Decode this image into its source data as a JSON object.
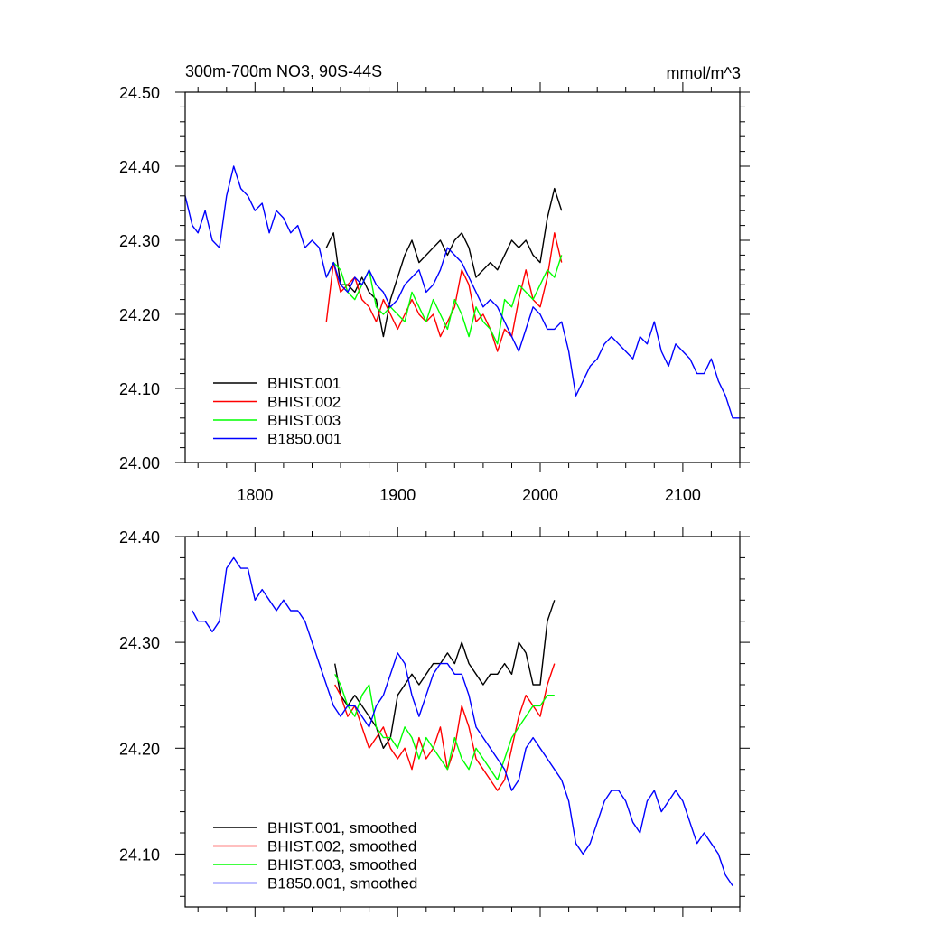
{
  "figure": {
    "title_left": "300m-700m NO3, 90S-44S",
    "title_right": "mmol/m^3"
  },
  "chart_data": [
    {
      "type": "line",
      "title": "300m-700m NO3, 90S-44S",
      "units": "mmol/m^3",
      "xlim": [
        1751,
        2140
      ],
      "ylim": [
        24.0,
        24.5
      ],
      "xticks": [
        1800,
        1900,
        2000,
        2100
      ],
      "xtick_labels": [
        "1800",
        "1900",
        "2000",
        "2100"
      ],
      "yticks": [
        24.0,
        24.1,
        24.2,
        24.3,
        24.4,
        24.5
      ],
      "ytick_labels": [
        "24.00",
        "24.10",
        "24.20",
        "24.30",
        "24.40",
        "24.50"
      ],
      "legend_position": "bottom-left",
      "series": [
        {
          "name": "BHIST.001",
          "color": "#000000",
          "x": [
            1850,
            1855,
            1860,
            1865,
            1870,
            1875,
            1880,
            1885,
            1890,
            1895,
            1900,
            1905,
            1910,
            1915,
            1920,
            1925,
            1930,
            1935,
            1940,
            1945,
            1950,
            1955,
            1960,
            1965,
            1970,
            1975,
            1980,
            1985,
            1990,
            1995,
            2000,
            2005,
            2010,
            2015
          ],
          "y": [
            24.29,
            24.31,
            24.24,
            24.24,
            24.23,
            24.25,
            24.23,
            24.22,
            24.17,
            24.22,
            24.25,
            24.28,
            24.3,
            24.27,
            24.28,
            24.29,
            24.3,
            24.28,
            24.3,
            24.31,
            24.29,
            24.25,
            24.26,
            24.27,
            24.26,
            24.28,
            24.3,
            24.29,
            24.3,
            24.28,
            24.27,
            24.33,
            24.37,
            24.34
          ]
        },
        {
          "name": "BHIST.002",
          "color": "#ff0000",
          "x": [
            1850,
            1855,
            1860,
            1865,
            1870,
            1875,
            1880,
            1885,
            1890,
            1895,
            1900,
            1905,
            1910,
            1915,
            1920,
            1925,
            1930,
            1935,
            1940,
            1945,
            1950,
            1955,
            1960,
            1965,
            1970,
            1975,
            1980,
            1985,
            1990,
            1995,
            2000,
            2005,
            2010,
            2015
          ],
          "y": [
            24.19,
            24.27,
            24.23,
            24.24,
            24.25,
            24.22,
            24.21,
            24.19,
            24.22,
            24.2,
            24.18,
            24.2,
            24.22,
            24.2,
            24.19,
            24.2,
            24.17,
            24.19,
            24.21,
            24.26,
            24.24,
            24.19,
            24.2,
            24.18,
            24.15,
            24.18,
            24.17,
            24.22,
            24.26,
            24.22,
            24.21,
            24.25,
            24.31,
            24.27
          ]
        },
        {
          "name": "BHIST.003",
          "color": "#00ff00",
          "x": [
            1850,
            1855,
            1860,
            1865,
            1870,
            1875,
            1880,
            1885,
            1890,
            1895,
            1900,
            1905,
            1910,
            1915,
            1920,
            1925,
            1930,
            1935,
            1940,
            1945,
            1950,
            1955,
            1960,
            1965,
            1970,
            1975,
            1980,
            1985,
            1990,
            1995,
            2000,
            2005,
            2010,
            2015
          ],
          "y": [
            24.25,
            24.27,
            24.26,
            24.23,
            24.22,
            24.24,
            24.26,
            24.21,
            24.2,
            24.21,
            24.2,
            24.19,
            24.23,
            24.21,
            24.19,
            24.22,
            24.2,
            24.18,
            24.22,
            24.2,
            24.17,
            24.21,
            24.19,
            24.18,
            24.16,
            24.22,
            24.21,
            24.24,
            24.23,
            24.22,
            24.24,
            24.26,
            24.25,
            24.28
          ]
        },
        {
          "name": "B1850.001",
          "color": "#0000ff",
          "x": [
            1751,
            1756,
            1760,
            1765,
            1770,
            1775,
            1780,
            1785,
            1790,
            1795,
            1800,
            1805,
            1810,
            1815,
            1820,
            1825,
            1830,
            1835,
            1840,
            1845,
            1850,
            1855,
            1860,
            1865,
            1870,
            1875,
            1880,
            1885,
            1890,
            1895,
            1900,
            1905,
            1910,
            1915,
            1920,
            1925,
            1930,
            1935,
            1940,
            1945,
            1950,
            1955,
            1960,
            1965,
            1970,
            1975,
            1980,
            1985,
            1990,
            1995,
            2000,
            2005,
            2010,
            2015,
            2020,
            2025,
            2030,
            2035,
            2040,
            2045,
            2050,
            2055,
            2060,
            2065,
            2070,
            2075,
            2080,
            2085,
            2090,
            2095,
            2100,
            2105,
            2110,
            2115,
            2120,
            2125,
            2130,
            2135,
            2140
          ],
          "y": [
            24.36,
            24.32,
            24.31,
            24.34,
            24.3,
            24.29,
            24.36,
            24.4,
            24.37,
            24.36,
            24.34,
            24.35,
            24.31,
            24.34,
            24.33,
            24.31,
            24.32,
            24.29,
            24.3,
            24.29,
            24.25,
            24.27,
            24.24,
            24.23,
            24.25,
            24.24,
            24.26,
            24.24,
            24.23,
            24.21,
            24.22,
            24.24,
            24.25,
            24.26,
            24.23,
            24.24,
            24.26,
            24.29,
            24.28,
            24.27,
            24.25,
            24.23,
            24.21,
            24.22,
            24.21,
            24.19,
            24.17,
            24.15,
            24.18,
            24.21,
            24.2,
            24.18,
            24.18,
            24.19,
            24.15,
            24.09,
            24.11,
            24.13,
            24.14,
            24.16,
            24.17,
            24.16,
            24.15,
            24.14,
            24.17,
            24.16,
            24.19,
            24.15,
            24.13,
            24.16,
            24.15,
            24.14,
            24.12,
            24.12,
            24.14,
            24.11,
            24.09,
            24.06,
            24.06
          ]
        }
      ]
    },
    {
      "type": "line",
      "xlim": [
        1751,
        2140
      ],
      "ylim": [
        24.05,
        24.4
      ],
      "xticks": [
        1800,
        1900,
        2000,
        2100
      ],
      "yticks": [
        24.1,
        24.2,
        24.3,
        24.4
      ],
      "ytick_labels": [
        "24.10",
        "24.20",
        "24.30",
        "24.40"
      ],
      "legend_position": "bottom-left",
      "series": [
        {
          "name": "BHIST.001, smoothed",
          "color": "#000000",
          "x": [
            1856,
            1860,
            1865,
            1870,
            1875,
            1880,
            1885,
            1890,
            1895,
            1900,
            1905,
            1910,
            1915,
            1920,
            1925,
            1930,
            1935,
            1940,
            1945,
            1950,
            1955,
            1960,
            1965,
            1970,
            1975,
            1980,
            1985,
            1990,
            1995,
            2000,
            2005,
            2010
          ],
          "y": [
            24.28,
            24.25,
            24.24,
            24.25,
            24.24,
            24.23,
            24.22,
            24.2,
            24.21,
            24.25,
            24.26,
            24.27,
            24.26,
            24.27,
            24.28,
            24.28,
            24.29,
            24.28,
            24.3,
            24.28,
            24.27,
            24.26,
            24.27,
            24.27,
            24.28,
            24.27,
            24.3,
            24.29,
            24.26,
            24.26,
            24.32,
            24.34
          ]
        },
        {
          "name": "BHIST.002, smoothed",
          "color": "#ff0000",
          "x": [
            1856,
            1860,
            1865,
            1870,
            1875,
            1880,
            1885,
            1890,
            1895,
            1900,
            1905,
            1910,
            1915,
            1920,
            1925,
            1930,
            1935,
            1940,
            1945,
            1950,
            1955,
            1960,
            1965,
            1970,
            1975,
            1980,
            1985,
            1990,
            1995,
            2000,
            2005,
            2010
          ],
          "y": [
            24.26,
            24.25,
            24.23,
            24.24,
            24.22,
            24.2,
            24.21,
            24.22,
            24.2,
            24.19,
            24.2,
            24.18,
            24.21,
            24.19,
            24.2,
            24.22,
            24.18,
            24.2,
            24.24,
            24.22,
            24.19,
            24.18,
            24.17,
            24.16,
            24.17,
            24.2,
            24.23,
            24.25,
            24.24,
            24.23,
            24.26,
            24.28
          ]
        },
        {
          "name": "BHIST.003, smoothed",
          "color": "#00ff00",
          "x": [
            1856,
            1860,
            1865,
            1870,
            1875,
            1880,
            1885,
            1890,
            1895,
            1900,
            1905,
            1910,
            1915,
            1920,
            1925,
            1930,
            1935,
            1940,
            1945,
            1950,
            1955,
            1960,
            1965,
            1970,
            1975,
            1980,
            1985,
            1990,
            1995,
            2000,
            2005,
            2010
          ],
          "y": [
            24.27,
            24.26,
            24.24,
            24.23,
            24.25,
            24.26,
            24.22,
            24.21,
            24.21,
            24.2,
            24.22,
            24.21,
            24.19,
            24.21,
            24.2,
            24.19,
            24.18,
            24.21,
            24.19,
            24.18,
            24.2,
            24.19,
            24.18,
            24.17,
            24.19,
            24.21,
            24.22,
            24.23,
            24.24,
            24.24,
            24.25,
            24.25
          ]
        },
        {
          "name": "B1850.001, smoothed",
          "color": "#0000ff",
          "x": [
            1756,
            1760,
            1765,
            1770,
            1775,
            1780,
            1785,
            1790,
            1795,
            1800,
            1805,
            1810,
            1815,
            1820,
            1825,
            1830,
            1835,
            1840,
            1845,
            1850,
            1855,
            1860,
            1865,
            1870,
            1875,
            1880,
            1885,
            1890,
            1895,
            1900,
            1905,
            1910,
            1915,
            1920,
            1925,
            1930,
            1935,
            1940,
            1945,
            1950,
            1955,
            1960,
            1965,
            1970,
            1975,
            1980,
            1985,
            1990,
            1995,
            2000,
            2005,
            2010,
            2015,
            2020,
            2025,
            2030,
            2035,
            2040,
            2045,
            2050,
            2055,
            2060,
            2065,
            2070,
            2075,
            2080,
            2085,
            2090,
            2095,
            2100,
            2105,
            2110,
            2115,
            2120,
            2125,
            2130,
            2135
          ],
          "y": [
            24.33,
            24.32,
            24.32,
            24.31,
            24.32,
            24.37,
            24.38,
            24.37,
            24.37,
            24.34,
            24.35,
            24.34,
            24.33,
            24.34,
            24.33,
            24.33,
            24.32,
            24.3,
            24.28,
            24.26,
            24.24,
            24.23,
            24.24,
            24.24,
            24.23,
            24.22,
            24.24,
            24.25,
            24.27,
            24.29,
            24.28,
            24.25,
            24.23,
            24.25,
            24.27,
            24.28,
            24.28,
            24.27,
            24.27,
            24.25,
            24.22,
            24.21,
            24.2,
            24.19,
            24.18,
            24.16,
            24.17,
            24.2,
            24.21,
            24.2,
            24.19,
            24.18,
            24.17,
            24.15,
            24.11,
            24.1,
            24.11,
            24.13,
            24.15,
            24.16,
            24.16,
            24.15,
            24.13,
            24.12,
            24.15,
            24.16,
            24.14,
            24.15,
            24.16,
            24.15,
            24.13,
            24.11,
            24.12,
            24.11,
            24.1,
            24.08,
            24.07
          ]
        }
      ]
    }
  ]
}
